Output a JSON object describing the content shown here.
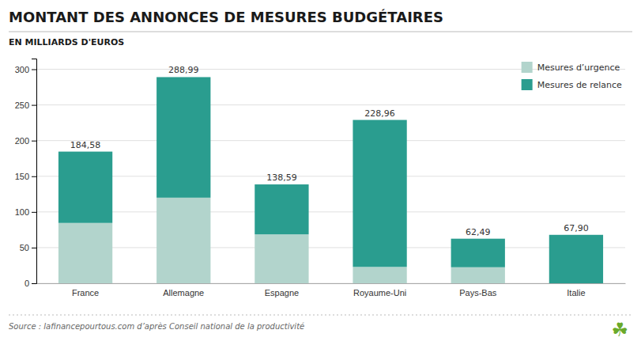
{
  "chart_data": {
    "type": "bar",
    "title": "MONTANT DES ANNONCES DE MESURES BUDGÉTAIRES",
    "subtitle": "EN MILLIARDS D'EUROS",
    "annotations": [
      "Source : lafinancepourtous.com d’après Conseil national de la productivité",
      "☘"
    ],
    "categories": [
      "France",
      "Allemagne",
      "Espagne",
      "Royaume-Uni",
      "Pays-Bas",
      "Italie"
    ],
    "series": [
      {
        "name": "Mesures d’urgence",
        "color": "#b2d4cc",
        "values": [
          84.58,
          119.99,
          68.59,
          22.96,
          22.49,
          0
        ]
      },
      {
        "name": "Mesures de relance",
        "color": "#2a9d8f",
        "values": [
          100,
          169,
          70,
          206,
          40,
          67.9
        ]
      }
    ],
    "totals": [
      184.58,
      288.99,
      138.59,
      228.96,
      62.49,
      67.9
    ],
    "total_labels": [
      "184,58",
      "288,99",
      "138,59",
      "228,96",
      "62,49",
      "67,90"
    ],
    "stacked": true,
    "ylim": [
      0,
      315
    ],
    "yticks": [
      0,
      50,
      100,
      150,
      200,
      250,
      300
    ],
    "grid": true,
    "legend": "upper right"
  }
}
